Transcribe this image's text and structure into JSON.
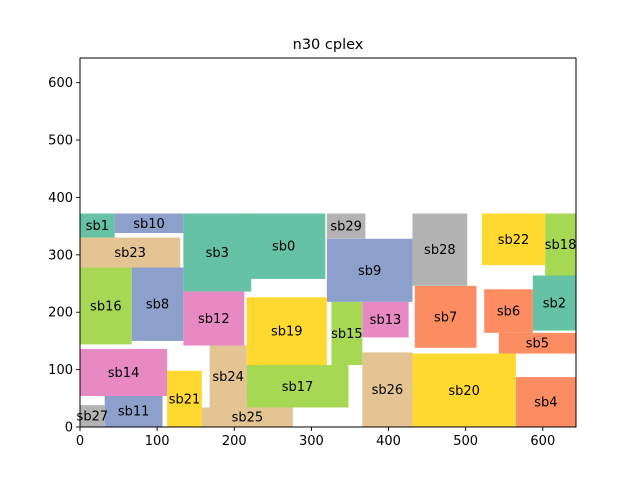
{
  "chart_data": {
    "type": "rectangles",
    "title": "n30 cplex",
    "xlabel": "",
    "ylabel": "",
    "xlim": [
      0,
      643
    ],
    "ylim": [
      0,
      643
    ],
    "xticks": [
      0,
      100,
      200,
      300,
      400,
      500,
      600
    ],
    "yticks": [
      0,
      100,
      200,
      300,
      400,
      500,
      600
    ],
    "grid": false,
    "colors": {
      "teal": "#66c2a5",
      "orange": "#fc8d62",
      "blue": "#8da0cb",
      "pink": "#e78ac3",
      "green": "#a6d854",
      "yellow": "#ffd92f",
      "tan": "#e5c494",
      "gray": "#b3b3b3"
    },
    "blocks": [
      {
        "label": "sb0",
        "x0": 210,
        "y0": 258,
        "x1": 318,
        "y1": 372,
        "color": "#66c2a5"
      },
      {
        "label": "sb1",
        "x0": 0,
        "y0": 330,
        "x1": 45,
        "y1": 372,
        "color": "#66c2a5"
      },
      {
        "label": "sb2",
        "x0": 587,
        "y0": 168,
        "x1": 643,
        "y1": 264,
        "color": "#66c2a5"
      },
      {
        "label": "sb3",
        "x0": 134,
        "y0": 236,
        "x1": 222,
        "y1": 372,
        "color": "#66c2a5"
      },
      {
        "label": "sb4",
        "x0": 565,
        "y0": 0,
        "x1": 643,
        "y1": 87,
        "color": "#fc8d62"
      },
      {
        "label": "sb5",
        "x0": 543,
        "y0": 128,
        "x1": 643,
        "y1": 164,
        "color": "#fc8d62"
      },
      {
        "label": "sb6",
        "x0": 524,
        "y0": 164,
        "x1": 587,
        "y1": 240,
        "color": "#fc8d62"
      },
      {
        "label": "sb7",
        "x0": 434,
        "y0": 138,
        "x1": 514,
        "y1": 246,
        "color": "#fc8d62"
      },
      {
        "label": "sb8",
        "x0": 67,
        "y0": 150,
        "x1": 134,
        "y1": 278,
        "color": "#8da0cb"
      },
      {
        "label": "sb9",
        "x0": 320,
        "y0": 218,
        "x1": 431,
        "y1": 328,
        "color": "#8da0cb"
      },
      {
        "label": "sb10",
        "x0": 45,
        "y0": 338,
        "x1": 134,
        "y1": 372,
        "color": "#8da0cb"
      },
      {
        "label": "sb11",
        "x0": 32,
        "y0": 0,
        "x1": 107,
        "y1": 56,
        "color": "#8da0cb"
      },
      {
        "label": "sb12",
        "x0": 134,
        "y0": 142,
        "x1": 213,
        "y1": 236,
        "color": "#e78ac3"
      },
      {
        "label": "sb13",
        "x0": 366,
        "y0": 156,
        "x1": 426,
        "y1": 218,
        "color": "#e78ac3"
      },
      {
        "label": "sb14",
        "x0": 0,
        "y0": 54,
        "x1": 113,
        "y1": 136,
        "color": "#e78ac3"
      },
      {
        "label": "sb15",
        "x0": 326,
        "y0": 108,
        "x1": 366,
        "y1": 218,
        "color": "#a6d854"
      },
      {
        "label": "sb16",
        "x0": 0,
        "y0": 144,
        "x1": 67,
        "y1": 278,
        "color": "#a6d854"
      },
      {
        "label": "sb17",
        "x0": 216,
        "y0": 34,
        "x1": 348,
        "y1": 108,
        "color": "#a6d854"
      },
      {
        "label": "sb18",
        "x0": 603,
        "y0": 264,
        "x1": 643,
        "y1": 372,
        "color": "#a6d854"
      },
      {
        "label": "sb19",
        "x0": 216,
        "y0": 108,
        "x1": 320,
        "y1": 226,
        "color": "#ffd92f"
      },
      {
        "label": "sb20",
        "x0": 431,
        "y0": 0,
        "x1": 565,
        "y1": 128,
        "color": "#ffd92f"
      },
      {
        "label": "sb21",
        "x0": 113,
        "y0": 0,
        "x1": 158,
        "y1": 98,
        "color": "#ffd92f"
      },
      {
        "label": "sb22",
        "x0": 521,
        "y0": 282,
        "x1": 603,
        "y1": 372,
        "color": "#ffd92f"
      },
      {
        "label": "sb23",
        "x0": 0,
        "y0": 278,
        "x1": 130,
        "y1": 330,
        "color": "#e5c494"
      },
      {
        "label": "sb24",
        "x0": 168,
        "y0": 34,
        "x1": 216,
        "y1": 142,
        "color": "#e5c494"
      },
      {
        "label": "sb25",
        "x0": 158,
        "y0": 0,
        "x1": 276,
        "y1": 34,
        "color": "#e5c494"
      },
      {
        "label": "sb26",
        "x0": 366,
        "y0": 0,
        "x1": 431,
        "y1": 130,
        "color": "#e5c494"
      },
      {
        "label": "sb27",
        "x0": 0,
        "y0": 0,
        "x1": 32,
        "y1": 38,
        "color": "#b3b3b3"
      },
      {
        "label": "sb28",
        "x0": 431,
        "y0": 246,
        "x1": 502,
        "y1": 372,
        "color": "#b3b3b3"
      },
      {
        "label": "sb29",
        "x0": 320,
        "y0": 328,
        "x1": 370,
        "y1": 372,
        "color": "#b3b3b3"
      }
    ]
  }
}
